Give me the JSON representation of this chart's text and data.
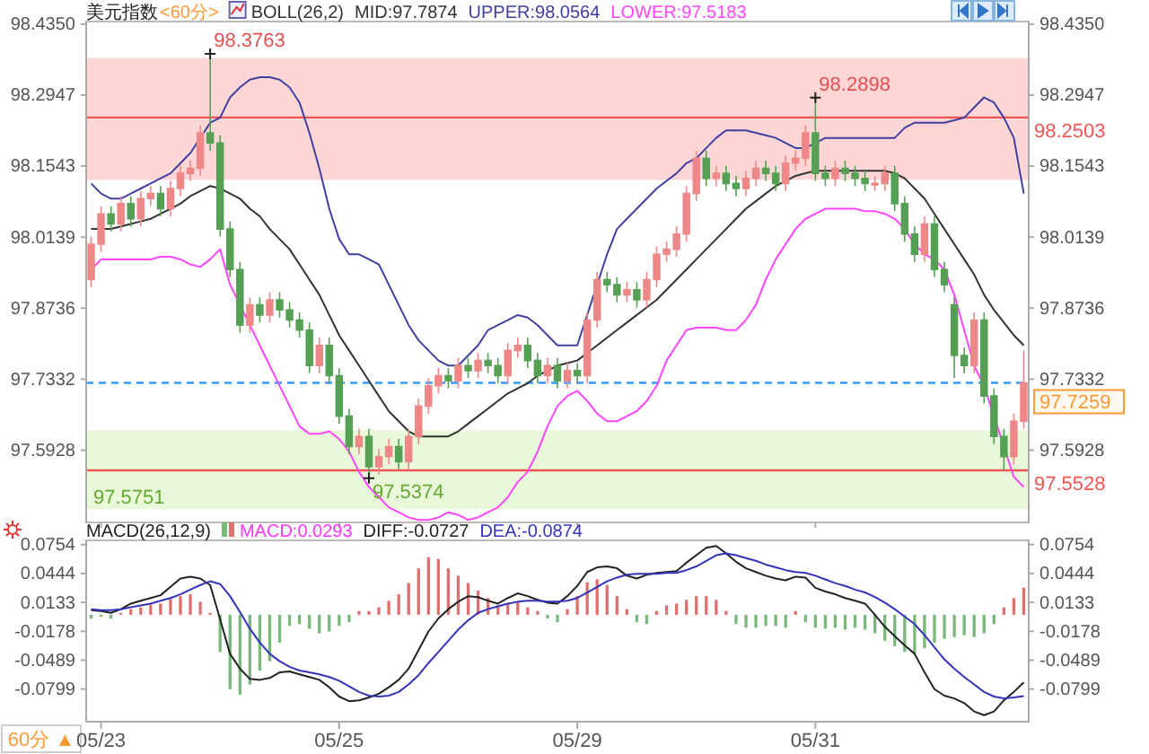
{
  "chart_data": [
    {
      "type": "candlestick",
      "title": "美元指数",
      "subtitle": "<60分>",
      "legend_title": "BOLL(26,2)",
      "legend": "top",
      "tick_labels": "y",
      "categories": [
        null,
        "05/23",
        null,
        null,
        null,
        null,
        null,
        null,
        null,
        null,
        null,
        null,
        null,
        null,
        null,
        null,
        null,
        null,
        null,
        null,
        null,
        null,
        null,
        null,
        null,
        "05/25",
        null,
        null,
        null,
        null,
        null,
        null,
        null,
        null,
        null,
        null,
        null,
        null,
        null,
        null,
        null,
        null,
        null,
        null,
        null,
        null,
        null,
        null,
        null,
        "05/29",
        null,
        null,
        null,
        null,
        null,
        null,
        null,
        null,
        null,
        null,
        null,
        null,
        null,
        null,
        null,
        null,
        null,
        null,
        null,
        null,
        null,
        null,
        null,
        "05/31",
        null,
        null,
        null,
        null,
        null,
        null,
        null,
        null,
        null,
        null,
        null,
        null,
        null,
        null,
        null,
        null,
        null,
        null,
        null,
        null,
        null
      ],
      "ohlc": [
        [
          97.93,
          98.015,
          97.915,
          98.0
        ],
        [
          98.0,
          98.075,
          97.985,
          98.06
        ],
        [
          98.06,
          98.075,
          98.025,
          98.04
        ],
        [
          98.04,
          98.095,
          98.025,
          98.08
        ],
        [
          98.08,
          98.095,
          98.035,
          98.05
        ],
        [
          98.05,
          98.105,
          98.035,
          98.09
        ],
        [
          98.09,
          98.115,
          98.075,
          98.1
        ],
        [
          98.1,
          98.115,
          98.055,
          98.07
        ],
        [
          98.07,
          98.125,
          98.055,
          98.11
        ],
        [
          98.11,
          98.155,
          98.095,
          98.14
        ],
        [
          98.14,
          98.165,
          98.125,
          98.15
        ],
        [
          98.15,
          98.235,
          98.135,
          98.22
        ],
        [
          98.22,
          98.3763,
          98.185,
          98.2
        ],
        [
          98.2,
          98.215,
          98.015,
          98.03
        ],
        [
          98.03,
          98.045,
          97.935,
          97.95
        ],
        [
          97.95,
          97.965,
          97.825,
          97.84
        ],
        [
          97.84,
          97.895,
          97.825,
          97.88
        ],
        [
          97.88,
          97.895,
          97.845,
          97.86
        ],
        [
          97.86,
          97.905,
          97.845,
          97.89
        ],
        [
          97.89,
          97.905,
          97.855,
          97.87
        ],
        [
          97.87,
          97.885,
          97.835,
          97.85
        ],
        [
          97.85,
          97.865,
          97.815,
          97.83
        ],
        [
          97.83,
          97.845,
          97.745,
          97.76
        ],
        [
          97.76,
          97.815,
          97.745,
          97.8
        ],
        [
          97.8,
          97.815,
          97.725,
          97.74
        ],
        [
          97.74,
          97.755,
          97.645,
          97.66
        ],
        [
          97.66,
          97.675,
          97.585,
          97.6
        ],
        [
          97.6,
          97.635,
          97.585,
          97.62
        ],
        [
          97.62,
          97.635,
          97.5374,
          97.56
        ],
        [
          97.56,
          97.595,
          97.545,
          97.58
        ],
        [
          97.58,
          97.615,
          97.565,
          97.6
        ],
        [
          97.6,
          97.615,
          97.555,
          97.57
        ],
        [
          97.57,
          97.635,
          97.555,
          97.62
        ],
        [
          97.62,
          97.695,
          97.605,
          97.68
        ],
        [
          97.68,
          97.735,
          97.665,
          97.72
        ],
        [
          97.72,
          97.755,
          97.705,
          97.74
        ],
        [
          97.74,
          97.755,
          97.715,
          97.73
        ],
        [
          97.73,
          97.775,
          97.715,
          97.76
        ],
        [
          97.76,
          97.775,
          97.735,
          97.75
        ],
        [
          97.75,
          97.785,
          97.735,
          97.77
        ],
        [
          97.77,
          97.785,
          97.745,
          97.76
        ],
        [
          97.76,
          97.775,
          97.725,
          97.74
        ],
        [
          97.74,
          97.805,
          97.725,
          97.79
        ],
        [
          97.79,
          97.815,
          97.775,
          97.8
        ],
        [
          97.8,
          97.815,
          97.755,
          97.77
        ],
        [
          97.77,
          97.785,
          97.725,
          97.74
        ],
        [
          97.74,
          97.775,
          97.725,
          97.76
        ],
        [
          97.76,
          97.775,
          97.715,
          97.73
        ],
        [
          97.73,
          97.765,
          97.715,
          97.75
        ],
        [
          97.75,
          97.765,
          97.725,
          97.74
        ],
        [
          97.74,
          97.865,
          97.725,
          97.85
        ],
        [
          97.85,
          97.945,
          97.835,
          97.93
        ],
        [
          97.93,
          97.945,
          97.905,
          97.92
        ],
        [
          97.92,
          97.935,
          97.885,
          97.9
        ],
        [
          97.9,
          97.925,
          97.885,
          97.91
        ],
        [
          97.91,
          97.925,
          97.875,
          97.89
        ],
        [
          97.89,
          97.945,
          97.875,
          97.93
        ],
        [
          97.93,
          97.995,
          97.915,
          97.98
        ],
        [
          97.98,
          98.005,
          97.965,
          97.99
        ],
        [
          97.99,
          98.035,
          97.975,
          98.02
        ],
        [
          98.02,
          98.115,
          98.005,
          98.1
        ],
        [
          98.1,
          98.185,
          98.085,
          98.17
        ],
        [
          98.17,
          98.185,
          98.115,
          98.13
        ],
        [
          98.13,
          98.155,
          98.115,
          98.14
        ],
        [
          98.14,
          98.155,
          98.105,
          98.12
        ],
        [
          98.12,
          98.135,
          98.095,
          98.11
        ],
        [
          98.11,
          98.145,
          98.095,
          98.13
        ],
        [
          98.13,
          98.165,
          98.115,
          98.15
        ],
        [
          98.15,
          98.165,
          98.125,
          98.14
        ],
        [
          98.14,
          98.155,
          98.105,
          98.12
        ],
        [
          98.12,
          98.175,
          98.105,
          98.16
        ],
        [
          98.16,
          98.185,
          98.145,
          98.17
        ],
        [
          98.17,
          98.235,
          98.155,
          98.22
        ],
        [
          98.22,
          98.2898,
          98.125,
          98.14
        ],
        [
          98.14,
          98.155,
          98.115,
          98.13
        ],
        [
          98.13,
          98.165,
          98.115,
          98.15
        ],
        [
          98.15,
          98.165,
          98.125,
          98.14
        ],
        [
          98.14,
          98.155,
          98.115,
          98.13
        ],
        [
          98.13,
          98.145,
          98.105,
          98.12
        ],
        [
          98.12,
          98.135,
          98.105,
          98.12
        ],
        [
          98.12,
          98.155,
          98.105,
          98.14
        ],
        [
          98.14,
          98.155,
          98.065,
          98.08
        ],
        [
          98.08,
          98.095,
          98.005,
          98.02
        ],
        [
          98.02,
          98.035,
          97.965,
          97.98
        ],
        [
          97.98,
          98.055,
          97.965,
          98.04
        ],
        [
          98.04,
          98.055,
          97.935,
          97.95
        ],
        [
          97.95,
          97.965,
          97.905,
          97.92
        ],
        [
          97.88,
          97.895,
          97.735,
          97.78
        ],
        [
          97.78,
          97.795,
          97.745,
          97.76
        ],
        [
          97.76,
          97.865,
          97.745,
          97.85
        ],
        [
          97.85,
          97.865,
          97.685,
          97.7
        ],
        [
          97.7,
          97.715,
          97.605,
          97.62
        ],
        [
          97.62,
          97.635,
          97.5528,
          97.58
        ],
        [
          97.58,
          97.665,
          97.565,
          97.65
        ],
        [
          97.65,
          97.79,
          97.635,
          97.7259
        ]
      ],
      "colors": [
        "#ee8888",
        "#ee8888",
        "#55a055",
        "#ee8888",
        "#55a055",
        "#ee8888",
        "#ee8888",
        "#55a055",
        "#ee8888",
        "#ee8888",
        "#ee8888",
        "#ee8888",
        "#55a055",
        "#55a055",
        "#55a055",
        "#55a055",
        "#ee8888",
        "#55a055",
        "#ee8888",
        "#55a055",
        "#55a055",
        "#55a055",
        "#55a055",
        "#ee8888",
        "#55a055",
        "#55a055",
        "#55a055",
        "#ee8888",
        "#55a055",
        "#ee8888",
        "#ee8888",
        "#55a055",
        "#ee8888",
        "#ee8888",
        "#ee8888",
        "#ee8888",
        "#55a055",
        "#ee8888",
        "#55a055",
        "#ee8888",
        "#55a055",
        "#55a055",
        "#ee8888",
        "#ee8888",
        "#55a055",
        "#55a055",
        "#ee8888",
        "#55a055",
        "#ee8888",
        "#55a055",
        "#ee8888",
        "#ee8888",
        "#55a055",
        "#55a055",
        "#ee8888",
        "#55a055",
        "#ee8888",
        "#ee8888",
        "#ee8888",
        "#ee8888",
        "#ee8888",
        "#ee8888",
        "#55a055",
        "#ee8888",
        "#55a055",
        "#55a055",
        "#ee8888",
        "#ee8888",
        "#55a055",
        "#55a055",
        "#ee8888",
        "#ee8888",
        "#ee8888",
        "#55a055",
        "#55a055",
        "#ee8888",
        "#55a055",
        "#55a055",
        "#55a055",
        "#ee8888",
        "#ee8888",
        "#55a055",
        "#55a055",
        "#55a055",
        "#ee8888",
        "#55a055",
        "#55a055",
        "#55a055",
        "#55a055",
        "#ee8888",
        "#55a055",
        "#55a055",
        "#55a055",
        "#ee8888",
        "#ee8888"
      ],
      "series": [
        {
          "type": "line",
          "name": "MID:97.7874",
          "color": "#333333",
          "values": [
            98.03,
            98.03,
            98.03,
            98.035,
            98.04,
            98.045,
            98.05,
            98.06,
            98.07,
            98.08,
            98.095,
            98.105,
            98.115,
            98.11,
            98.1,
            98.09,
            98.07,
            98.055,
            98.03,
            98.01,
            97.99,
            97.96,
            97.93,
            97.9,
            97.86,
            97.82,
            97.79,
            97.76,
            97.73,
            97.7,
            97.67,
            97.65,
            97.63,
            97.62,
            97.62,
            97.62,
            97.62,
            97.63,
            97.645,
            97.66,
            97.675,
            97.69,
            97.705,
            97.715,
            97.725,
            97.74,
            97.75,
            97.76,
            97.765,
            97.77,
            97.785,
            97.8,
            97.815,
            97.83,
            97.845,
            97.86,
            97.875,
            97.89,
            97.91,
            97.93,
            97.95,
            97.97,
            97.99,
            98.01,
            98.03,
            98.05,
            98.07,
            98.085,
            98.1,
            98.115,
            98.125,
            98.135,
            98.14,
            98.145,
            98.145,
            98.145,
            98.145,
            98.145,
            98.145,
            98.145,
            98.145,
            98.14,
            98.13,
            98.11,
            98.09,
            98.06,
            98.03,
            98.0,
            97.97,
            97.94,
            97.9,
            97.87,
            97.845,
            97.82,
            97.8
          ]
        },
        {
          "type": "line",
          "name": "UPPER:98.0564",
          "color": "#4040a0",
          "values": [
            98.12,
            98.1,
            98.09,
            98.09,
            98.1,
            98.11,
            98.12,
            98.13,
            98.14,
            98.16,
            98.18,
            98.21,
            98.24,
            98.25,
            98.29,
            98.31,
            98.325,
            98.33,
            98.33,
            98.325,
            98.31,
            98.28,
            98.22,
            98.15,
            98.07,
            98.01,
            97.98,
            97.98,
            97.97,
            97.96,
            97.92,
            97.88,
            97.84,
            97.81,
            97.79,
            97.77,
            97.76,
            97.76,
            97.78,
            97.8,
            97.83,
            97.84,
            97.85,
            97.86,
            97.855,
            97.84,
            97.82,
            97.8,
            97.8,
            97.8,
            97.86,
            97.92,
            97.98,
            98.03,
            98.05,
            98.07,
            98.09,
            98.11,
            98.125,
            98.14,
            98.16,
            98.17,
            98.19,
            98.21,
            98.225,
            98.225,
            98.225,
            98.22,
            98.215,
            98.21,
            98.2,
            98.19,
            98.19,
            98.2,
            98.21,
            98.21,
            98.21,
            98.21,
            98.21,
            98.21,
            98.21,
            98.21,
            98.23,
            98.24,
            98.24,
            98.24,
            98.24,
            98.245,
            98.25,
            98.27,
            98.29,
            98.28,
            98.25,
            98.21,
            98.1
          ]
        },
        {
          "type": "line",
          "name": "LOWER:97.5183",
          "color": "#ff44ff",
          "values": [
            97.95,
            97.97,
            97.97,
            97.97,
            97.97,
            97.97,
            97.97,
            97.975,
            97.975,
            97.97,
            97.96,
            97.955,
            97.97,
            97.99,
            97.92,
            97.88,
            97.84,
            97.8,
            97.76,
            97.72,
            97.68,
            97.64,
            97.625,
            97.625,
            97.63,
            97.615,
            97.59,
            97.55,
            97.52,
            97.5,
            97.48,
            97.47,
            97.46,
            97.455,
            97.455,
            97.46,
            97.47,
            97.465,
            97.455,
            97.46,
            97.47,
            97.48,
            97.5,
            97.53,
            97.55,
            97.59,
            97.64,
            97.68,
            97.7,
            97.71,
            97.69,
            97.665,
            97.65,
            97.65,
            97.66,
            97.67,
            97.69,
            97.72,
            97.77,
            97.8,
            97.83,
            97.835,
            97.835,
            97.835,
            97.83,
            97.83,
            97.85,
            97.88,
            97.93,
            97.97,
            98.0,
            98.03,
            98.05,
            98.06,
            98.07,
            98.07,
            98.07,
            98.07,
            98.065,
            98.065,
            98.06,
            98.05,
            98.03,
            98.0,
            97.98,
            97.97,
            97.95,
            97.9,
            97.83,
            97.76,
            97.72,
            97.66,
            97.6,
            97.54,
            97.52
          ]
        }
      ],
      "ylim": [
        97.45,
        98.44
      ],
      "yticks": [
        {
          "value": 98.435,
          "label": "98.4350"
        },
        98.2947,
        98.1543,
        98.0139,
        97.8736,
        97.7332,
        97.5928
      ],
      "y2lim": [
        97.45,
        98.44
      ],
      "y2ticks": [
        {
          "value": 98.435,
          "label": "98.4350"
        },
        98.2947,
        98.1543,
        98.0139,
        97.8736,
        97.7332,
        97.5928
      ],
      "bands": [
        {
          "axis": "y",
          "from": 98.127,
          "to": 98.368,
          "color": "#ffd6d6"
        },
        {
          "axis": "y",
          "from": 97.476,
          "to": 97.632,
          "label": "97.5751",
          "color": "#e8f8d8"
        }
      ],
      "ref_lines": [
        {
          "axis": "y",
          "value": 98.2503,
          "label": "98.2503",
          "color": "#ee5555",
          "line_style": "solid"
        },
        {
          "axis": "y",
          "value": 97.5528,
          "label": "97.5528",
          "color": "#ee5555",
          "line_style": "solid"
        },
        {
          "axis": "y",
          "value": 97.7259,
          "label": "97.7259",
          "color": "#3399ff",
          "line_style": "dashed"
        }
      ],
      "annotations": [
        {
          "text": "98.3763",
          "y": 98.3763
        },
        {
          "text": "98.2898",
          "x": "05/31",
          "y": 98.2898
        },
        {
          "text": "97.5374",
          "y": 97.5374
        }
      ]
    },
    {
      "type": "line",
      "title": "MACD(26,12,9)",
      "legend": "top",
      "categories": [
        null,
        "05/23",
        null,
        null,
        null,
        null,
        null,
        null,
        null,
        null,
        null,
        null,
        null,
        null,
        null,
        null,
        null,
        null,
        null,
        null,
        null,
        null,
        null,
        null,
        null,
        "05/25",
        null,
        null,
        null,
        null,
        null,
        null,
        null,
        null,
        null,
        null,
        null,
        null,
        null,
        null,
        null,
        null,
        null,
        null,
        null,
        null,
        null,
        null,
        null,
        "05/29",
        null,
        null,
        null,
        null,
        null,
        null,
        null,
        null,
        null,
        null,
        null,
        null,
        null,
        null,
        null,
        null,
        null,
        null,
        null,
        null,
        null,
        null,
        null,
        "05/31",
        null,
        null,
        null,
        null,
        null,
        null,
        null,
        null,
        null,
        null,
        null,
        null,
        null,
        null,
        null,
        null,
        null,
        null,
        null,
        null,
        null
      ],
      "series": [
        {
          "type": "bar",
          "name": "MACD:0.0293",
          "color": "#ff33ff",
          "values": [
            -0.004,
            -0.002,
            -0.004,
            0.002,
            0.006,
            0.008,
            0.011,
            0.012,
            0.017,
            0.02,
            0.022,
            0.014,
            0.002,
            -0.04,
            -0.08,
            -0.086,
            -0.075,
            -0.06,
            -0.05,
            -0.03,
            -0.012,
            -0.01,
            -0.015,
            -0.02,
            -0.018,
            -0.012,
            -0.008,
            0.004,
            0.004,
            0.008,
            0.015,
            0.022,
            0.034,
            0.05,
            0.062,
            0.06,
            0.05,
            0.042,
            0.034,
            0.026,
            0.018,
            0.01,
            0.012,
            0.014,
            0.008,
            0.004,
            -0.004,
            -0.008,
            0.006,
            0.02,
            0.035,
            0.038,
            0.032,
            0.02,
            0.006,
            -0.008,
            -0.01,
            0.004,
            0.01,
            0.012,
            0.016,
            0.02,
            0.02,
            0.016,
            0.004,
            -0.01,
            -0.014,
            -0.014,
            -0.012,
            -0.012,
            -0.014,
            0.004,
            -0.008,
            -0.014,
            -0.015,
            -0.014,
            -0.016,
            -0.014,
            -0.016,
            -0.02,
            -0.028,
            -0.034,
            -0.04,
            -0.042,
            -0.036,
            -0.03,
            -0.026,
            -0.024,
            -0.022,
            -0.024,
            -0.02,
            -0.01,
            0.008,
            0.018,
            0.0293
          ],
          "colors": [
            "#7ab87a",
            "#7ab87a",
            "#7ab87a",
            "#e07070",
            "#e07070",
            "#e07070",
            "#e07070",
            "#e07070",
            "#e07070",
            "#e07070",
            "#e07070",
            "#e07070",
            "#e07070",
            "#7ab87a",
            "#7ab87a",
            "#7ab87a",
            "#7ab87a",
            "#7ab87a",
            "#7ab87a",
            "#7ab87a",
            "#7ab87a",
            "#7ab87a",
            "#7ab87a",
            "#7ab87a",
            "#7ab87a",
            "#7ab87a",
            "#7ab87a",
            "#e07070",
            "#e07070",
            "#e07070",
            "#e07070",
            "#e07070",
            "#e07070",
            "#e07070",
            "#e07070",
            "#e07070",
            "#e07070",
            "#e07070",
            "#e07070",
            "#e07070",
            "#e07070",
            "#e07070",
            "#e07070",
            "#e07070",
            "#e07070",
            "#e07070",
            "#7ab87a",
            "#7ab87a",
            "#e07070",
            "#e07070",
            "#e07070",
            "#e07070",
            "#e07070",
            "#e07070",
            "#e07070",
            "#7ab87a",
            "#7ab87a",
            "#e07070",
            "#e07070",
            "#e07070",
            "#e07070",
            "#e07070",
            "#e07070",
            "#e07070",
            "#e07070",
            "#7ab87a",
            "#7ab87a",
            "#7ab87a",
            "#7ab87a",
            "#7ab87a",
            "#7ab87a",
            "#e07070",
            "#7ab87a",
            "#7ab87a",
            "#7ab87a",
            "#7ab87a",
            "#7ab87a",
            "#7ab87a",
            "#7ab87a",
            "#7ab87a",
            "#7ab87a",
            "#7ab87a",
            "#7ab87a",
            "#7ab87a",
            "#7ab87a",
            "#7ab87a",
            "#7ab87a",
            "#7ab87a",
            "#7ab87a",
            "#7ab87a",
            "#7ab87a",
            "#7ab87a",
            "#e07070",
            "#e07070",
            "#e07070"
          ]
        },
        {
          "type": "line",
          "name": "DIFF:-0.0727",
          "color": "#222222",
          "values": [
            0.005,
            0.004,
            0.002,
            0.006,
            0.012,
            0.015,
            0.018,
            0.021,
            0.03,
            0.039,
            0.041,
            0.039,
            0.032,
            -0.005,
            -0.042,
            -0.058,
            -0.069,
            -0.07,
            -0.068,
            -0.062,
            -0.061,
            -0.064,
            -0.067,
            -0.07,
            -0.078,
            -0.088,
            -0.093,
            -0.092,
            -0.089,
            -0.085,
            -0.078,
            -0.07,
            -0.058,
            -0.038,
            -0.018,
            -0.004,
            0.006,
            0.014,
            0.02,
            0.019,
            0.015,
            0.012,
            0.018,
            0.023,
            0.02,
            0.016,
            0.013,
            0.012,
            0.02,
            0.031,
            0.046,
            0.051,
            0.052,
            0.05,
            0.042,
            0.039,
            0.043,
            0.045,
            0.046,
            0.047,
            0.056,
            0.064,
            0.072,
            0.074,
            0.066,
            0.057,
            0.05,
            0.046,
            0.042,
            0.039,
            0.037,
            0.041,
            0.04,
            0.029,
            0.025,
            0.022,
            0.018,
            0.015,
            0.012,
            0.0,
            -0.013,
            -0.023,
            -0.033,
            -0.042,
            -0.062,
            -0.08,
            -0.087,
            -0.09,
            -0.095,
            -0.104,
            -0.108,
            -0.104,
            -0.092,
            -0.083,
            -0.0727
          ]
        },
        {
          "type": "line",
          "name": "DEA:-0.0874",
          "color": "#3333bb",
          "values": [
            0.006,
            0.005,
            0.005,
            0.006,
            0.008,
            0.01,
            0.012,
            0.015,
            0.018,
            0.022,
            0.027,
            0.032,
            0.036,
            0.033,
            0.02,
            0.003,
            -0.015,
            -0.03,
            -0.042,
            -0.05,
            -0.056,
            -0.06,
            -0.062,
            -0.064,
            -0.067,
            -0.071,
            -0.077,
            -0.083,
            -0.087,
            -0.088,
            -0.087,
            -0.083,
            -0.075,
            -0.065,
            -0.052,
            -0.04,
            -0.028,
            -0.016,
            -0.006,
            0.002,
            0.006,
            0.009,
            0.012,
            0.014,
            0.015,
            0.015,
            0.014,
            0.014,
            0.015,
            0.018,
            0.024,
            0.03,
            0.036,
            0.04,
            0.043,
            0.044,
            0.044,
            0.044,
            0.045,
            0.045,
            0.048,
            0.052,
            0.058,
            0.064,
            0.066,
            0.064,
            0.061,
            0.058,
            0.054,
            0.051,
            0.048,
            0.046,
            0.045,
            0.042,
            0.038,
            0.034,
            0.031,
            0.027,
            0.024,
            0.019,
            0.013,
            0.006,
            -0.002,
            -0.01,
            -0.022,
            -0.035,
            -0.048,
            -0.058,
            -0.067,
            -0.075,
            -0.083,
            -0.088,
            -0.09,
            -0.089,
            -0.0874
          ]
        }
      ],
      "ylim": [
        -0.115,
        0.08
      ],
      "yticks": [
        0.0754,
        0.0444,
        0.0133,
        -0.0178,
        -0.0489,
        -0.0799
      ],
      "y2lim": [
        -0.115,
        0.08
      ],
      "y2ticks": [
        0.0754,
        0.0444,
        0.0133,
        -0.0178,
        -0.0489,
        -0.0799
      ],
      "annotations": [
        "60分 ▲"
      ]
    }
  ]
}
